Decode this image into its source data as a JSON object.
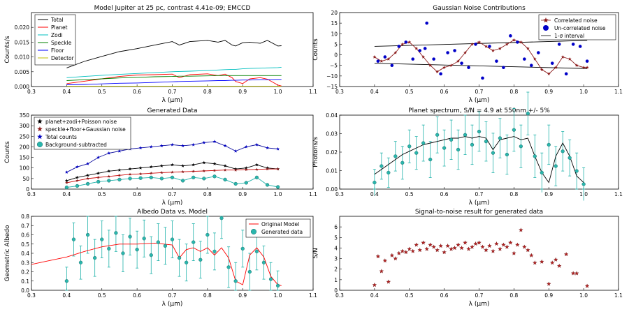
{
  "figure": {
    "title": "Six-panel simulated exoplanet spectrum figure"
  },
  "colors": {
    "total": "#000000",
    "planet": "#ff0000",
    "zodi": "#00bfbf",
    "speckle": "#008000",
    "floor": "#0000ff",
    "detector": "#bfbf00",
    "teal": "#20b2aa",
    "tealfill": "#2ab6ad",
    "darkred": "#8b1a1a",
    "navy": "#1010a0"
  },
  "chart_data": [
    {
      "id": "p1",
      "type": "line",
      "title": "Model Jupiter at 25 pc, contrast 4.41e-09; EMCCD",
      "xlabel": "λ (μm)",
      "ylabel": "Counts/s",
      "xlim": [
        0.3,
        1.1
      ],
      "ylim": [
        0,
        0.025
      ],
      "xticks": [
        "0.3",
        "0.4",
        "0.5",
        "0.6",
        "0.7",
        "0.8",
        "0.9",
        "1.0",
        "1.1"
      ],
      "yticks": [
        "0.000",
        "0.005",
        "0.010",
        "0.015",
        "0.020"
      ],
      "legend": [
        "Total",
        "Planet",
        "Zodi",
        "Speckle",
        "Floor",
        "Detector"
      ],
      "x": [
        0.4,
        0.45,
        0.5,
        0.55,
        0.6,
        0.65,
        0.7,
        0.72,
        0.75,
        0.8,
        0.83,
        0.85,
        0.87,
        0.88,
        0.9,
        0.92,
        0.95,
        0.97,
        1.0,
        1.01
      ],
      "series": [
        {
          "name": "Total",
          "y": [
            0.0063,
            0.0085,
            0.0102,
            0.0118,
            0.0128,
            0.014,
            0.0152,
            0.014,
            0.0152,
            0.0156,
            0.015,
            0.0156,
            0.014,
            0.0137,
            0.0148,
            0.015,
            0.0146,
            0.0156,
            0.0137,
            0.0138
          ]
        },
        {
          "name": "Planet",
          "y": [
            0.001,
            0.0018,
            0.0026,
            0.0034,
            0.0039,
            0.004,
            0.0042,
            0.003,
            0.004,
            0.0043,
            0.0037,
            0.0042,
            0.003,
            0.0017,
            0.001,
            0.0026,
            0.003,
            0.0025,
            0.0005,
            0.0002
          ]
        },
        {
          "name": "Zodi",
          "y": [
            0.003,
            0.0034,
            0.0038,
            0.0041,
            0.0044,
            0.0047,
            0.005,
            0.0051,
            0.0052,
            0.0054,
            0.0056,
            0.0057,
            0.0058,
            0.0058,
            0.006,
            0.0061,
            0.0062,
            0.0063,
            0.0064,
            0.0065
          ]
        },
        {
          "name": "Speckle",
          "y": [
            0.002,
            0.0023,
            0.0026,
            0.0029,
            0.0031,
            0.0033,
            0.0034,
            0.0035,
            0.0035,
            0.0036,
            0.0037,
            0.0037,
            0.0037,
            0.0037,
            0.0037,
            0.0037,
            0.0037,
            0.0037,
            0.0037,
            0.0037
          ]
        },
        {
          "name": "Floor",
          "y": [
            0.0006,
            0.0007,
            0.0009,
            0.0011,
            0.0012,
            0.0014,
            0.0016,
            0.0017,
            0.0018,
            0.0019,
            0.002,
            0.002,
            0.0021,
            0.0021,
            0.0022,
            0.0022,
            0.0023,
            0.0023,
            0.0024,
            0.0024
          ]
        },
        {
          "name": "Detector",
          "y": [
            0.0001,
            0.0001,
            0.0001,
            0.0001,
            0.0001,
            0.0001,
            0.0001,
            0.0001,
            0.0001,
            0.0001,
            0.0001,
            0.0001,
            0.0001,
            0.0001,
            0.0001,
            0.0001,
            0.0001,
            0.0001,
            0.0001,
            0.0001
          ]
        }
      ]
    },
    {
      "id": "p2",
      "type": "scatter",
      "title": "Gaussian Noise Contributions",
      "xlabel": "λ (μm)",
      "ylabel": "Counts",
      "xlim": [
        0.3,
        1.1
      ],
      "ylim": [
        -15,
        20
      ],
      "xticks": [
        "0.3",
        "0.4",
        "0.5",
        "0.6",
        "0.7",
        "0.8",
        "0.9",
        "1.0",
        "1.1"
      ],
      "yticks": [
        "−15",
        "−10",
        "−5",
        "0",
        "5",
        "10",
        "15",
        "20"
      ],
      "legend": [
        "Correlated noise",
        "Un-correlated noise",
        "1-σ interval"
      ],
      "sigma_x": [
        0.4,
        1.01
      ],
      "sigma_upper": [
        4.0,
        6.8
      ],
      "sigma_lower": [
        -4.0,
        -6.5
      ],
      "correlated": {
        "x": [
          0.4,
          0.42,
          0.44,
          0.46,
          0.48,
          0.5,
          0.52,
          0.54,
          0.56,
          0.58,
          0.6,
          0.62,
          0.64,
          0.66,
          0.68,
          0.7,
          0.72,
          0.74,
          0.76,
          0.78,
          0.8,
          0.82,
          0.84,
          0.86,
          0.88,
          0.9,
          0.92,
          0.94,
          0.96,
          0.98,
          1.0,
          1.01
        ],
        "y": [
          -1,
          -3,
          -2,
          1,
          5,
          6,
          3,
          -1,
          -5,
          -8,
          -6,
          -5,
          -3,
          1,
          5,
          6,
          4,
          2,
          3,
          5,
          7,
          6,
          3,
          -2,
          -7,
          -9,
          -6,
          -1,
          -2,
          -5,
          -6,
          -6
        ]
      },
      "uncorrelated": {
        "x": [
          0.41,
          0.43,
          0.45,
          0.47,
          0.49,
          0.51,
          0.53,
          0.545,
          0.55,
          0.57,
          0.59,
          0.61,
          0.63,
          0.65,
          0.67,
          0.69,
          0.71,
          0.73,
          0.75,
          0.77,
          0.79,
          0.81,
          0.83,
          0.85,
          0.87,
          0.89,
          0.91,
          0.93,
          0.95,
          0.97,
          0.99,
          1.01
        ],
        "y": [
          -3,
          -1,
          -5,
          4,
          6,
          -2,
          2,
          3,
          15,
          -2,
          -9,
          1,
          2,
          -4,
          -6,
          5,
          -11,
          4,
          -3,
          -6,
          9,
          6,
          -2,
          -5,
          1,
          13,
          -4,
          5,
          -9,
          5,
          4,
          -3
        ]
      }
    },
    {
      "id": "p3",
      "type": "scatter",
      "title": "Generated Data",
      "xlabel": "λ (μm)",
      "ylabel": "Counts",
      "xlim": [
        0.3,
        1.1
      ],
      "ylim": [
        0,
        350
      ],
      "xticks": [
        "0.3",
        "0.4",
        "0.5",
        "0.6",
        "0.7",
        "0.8",
        "0.9",
        "1.0",
        "1.1"
      ],
      "yticks": [
        "0",
        "50",
        "100",
        "150",
        "200",
        "250",
        "300",
        "350"
      ],
      "legend": [
        "planet+zodi+Poisson noise",
        "speckle+floor+Gaussian noise",
        "Total counts",
        "Background-subtracted"
      ],
      "x": [
        0.4,
        0.43,
        0.46,
        0.49,
        0.52,
        0.55,
        0.58,
        0.61,
        0.64,
        0.67,
        0.7,
        0.73,
        0.76,
        0.79,
        0.82,
        0.85,
        0.88,
        0.91,
        0.94,
        0.97,
        1.0
      ],
      "total": [
        80,
        105,
        120,
        150,
        170,
        180,
        190,
        195,
        200,
        205,
        210,
        205,
        210,
        220,
        225,
        205,
        180,
        200,
        210,
        195,
        190
      ],
      "pz": [
        40,
        55,
        65,
        75,
        85,
        90,
        95,
        100,
        105,
        110,
        115,
        110,
        115,
        125,
        120,
        110,
        95,
        100,
        115,
        100,
        95
      ],
      "sf": [
        30,
        40,
        50,
        55,
        60,
        65,
        70,
        72,
        75,
        78,
        80,
        82,
        84,
        86,
        88,
        90,
        90,
        92,
        93,
        95,
        95
      ],
      "bgsub": [
        8,
        15,
        25,
        35,
        40,
        45,
        50,
        52,
        55,
        50,
        55,
        40,
        55,
        50,
        60,
        45,
        25,
        30,
        55,
        20,
        10
      ]
    },
    {
      "id": "p4",
      "type": "scatter",
      "title": "Planet spectrum, S/N = 4.9 at 550nm +/- 5%",
      "xlabel": "λ (μm)",
      "ylabel": "Photons/s",
      "xlim": [
        0.3,
        1.1
      ],
      "ylim": [
        0,
        0.045
      ],
      "xticks": [
        "0.3",
        "0.4",
        "0.5",
        "0.6",
        "0.7",
        "0.8",
        "0.9",
        "1.0",
        "1.1"
      ],
      "yticks": [
        "0.00",
        "0.01",
        "0.02",
        "0.03",
        "0.04"
      ],
      "x": [
        0.4,
        0.42,
        0.44,
        0.46,
        0.48,
        0.5,
        0.52,
        0.54,
        0.56,
        0.58,
        0.6,
        0.62,
        0.64,
        0.66,
        0.68,
        0.7,
        0.72,
        0.74,
        0.76,
        0.78,
        0.8,
        0.82,
        0.84,
        0.86,
        0.88,
        0.9,
        0.92,
        0.94,
        0.96,
        0.98,
        1.0
      ],
      "model": [
        0.009,
        0.012,
        0.015,
        0.018,
        0.021,
        0.023,
        0.025,
        0.027,
        0.028,
        0.029,
        0.03,
        0.031,
        0.031,
        0.032,
        0.031,
        0.032,
        0.031,
        0.024,
        0.03,
        0.031,
        0.032,
        0.03,
        0.031,
        0.02,
        0.01,
        0.004,
        0.02,
        0.028,
        0.02,
        0.008,
        0.004
      ],
      "data": [
        0.004,
        0.014,
        0.01,
        0.02,
        0.016,
        0.026,
        0.022,
        0.028,
        0.018,
        0.033,
        0.025,
        0.03,
        0.024,
        0.033,
        0.027,
        0.035,
        0.029,
        0.022,
        0.031,
        0.021,
        0.036,
        0.026,
        0.046,
        0.02,
        0.01,
        0.027,
        0.014,
        0.023,
        0.019,
        0.011,
        0.003
      ],
      "err": [
        0.008,
        0.008,
        0.009,
        0.009,
        0.01,
        0.01,
        0.01,
        0.011,
        0.011,
        0.011,
        0.011,
        0.012,
        0.012,
        0.012,
        0.012,
        0.012,
        0.012,
        0.012,
        0.012,
        0.012,
        0.013,
        0.013,
        0.013,
        0.013,
        0.012,
        0.012,
        0.012,
        0.012,
        0.011,
        0.011,
        0.01
      ]
    },
    {
      "id": "p5",
      "type": "scatter",
      "title": "Albedo Data vs. Model",
      "xlabel": "λ (μm)",
      "ylabel": "Geometric Albedo",
      "xlim": [
        0.3,
        1.1
      ],
      "ylim": [
        0,
        0.8
      ],
      "xticks": [
        "0.3",
        "0.4",
        "0.5",
        "0.6",
        "0.7",
        "0.8",
        "0.9",
        "1.0",
        "1.1"
      ],
      "yticks": [
        "0.0",
        "0.1",
        "0.2",
        "0.3",
        "0.4",
        "0.5",
        "0.6",
        "0.7",
        "0.8"
      ],
      "legend": [
        "Original Model",
        "Generated data"
      ],
      "model_x": [
        0.3,
        0.35,
        0.4,
        0.45,
        0.5,
        0.55,
        0.6,
        0.65,
        0.7,
        0.72,
        0.74,
        0.76,
        0.78,
        0.8,
        0.82,
        0.84,
        0.86,
        0.88,
        0.9,
        0.92,
        0.94,
        0.96,
        0.98,
        1.0,
        1.01
      ],
      "model_y": [
        0.28,
        0.32,
        0.36,
        0.42,
        0.47,
        0.5,
        0.5,
        0.51,
        0.49,
        0.35,
        0.44,
        0.46,
        0.42,
        0.46,
        0.38,
        0.46,
        0.35,
        0.1,
        0.06,
        0.38,
        0.46,
        0.36,
        0.15,
        0.06,
        0.05
      ],
      "x": [
        0.4,
        0.42,
        0.44,
        0.46,
        0.48,
        0.5,
        0.52,
        0.54,
        0.56,
        0.58,
        0.6,
        0.62,
        0.64,
        0.66,
        0.68,
        0.7,
        0.72,
        0.74,
        0.76,
        0.78,
        0.8,
        0.82,
        0.84,
        0.86,
        0.88,
        0.9,
        0.92,
        0.94,
        0.96,
        0.98,
        1.0
      ],
      "data": [
        0.1,
        0.55,
        0.3,
        0.6,
        0.35,
        0.55,
        0.45,
        0.62,
        0.4,
        0.58,
        0.44,
        0.56,
        0.38,
        0.52,
        0.48,
        0.55,
        0.35,
        0.3,
        0.52,
        0.33,
        0.6,
        0.42,
        0.78,
        0.25,
        0.1,
        0.45,
        0.2,
        0.42,
        0.3,
        0.12,
        0.05
      ],
      "err": [
        0.15,
        0.18,
        0.18,
        0.2,
        0.2,
        0.2,
        0.2,
        0.2,
        0.2,
        0.2,
        0.2,
        0.2,
        0.2,
        0.2,
        0.2,
        0.2,
        0.2,
        0.2,
        0.2,
        0.2,
        0.2,
        0.2,
        0.22,
        0.22,
        0.2,
        0.2,
        0.2,
        0.2,
        0.18,
        0.18,
        0.16
      ]
    },
    {
      "id": "p6",
      "type": "scatter",
      "title": "Signal-to-noise result for generated data",
      "xlabel": "λ (μm)",
      "ylabel": "S/N",
      "xlim": [
        0.3,
        1.1
      ],
      "ylim": [
        0,
        7
      ],
      "xticks": [
        "0.3",
        "0.4",
        "0.5",
        "0.6",
        "0.7",
        "0.8",
        "0.9",
        "1.0",
        "1.1"
      ],
      "yticks": [
        "0",
        "1",
        "2",
        "3",
        "4",
        "5",
        "6"
      ],
      "x": [
        0.4,
        0.41,
        0.42,
        0.43,
        0.44,
        0.45,
        0.46,
        0.47,
        0.48,
        0.49,
        0.5,
        0.51,
        0.52,
        0.53,
        0.54,
        0.55,
        0.56,
        0.57,
        0.58,
        0.59,
        0.6,
        0.61,
        0.62,
        0.63,
        0.64,
        0.65,
        0.66,
        0.67,
        0.68,
        0.69,
        0.7,
        0.71,
        0.72,
        0.73,
        0.74,
        0.75,
        0.76,
        0.77,
        0.78,
        0.79,
        0.8,
        0.81,
        0.82,
        0.83,
        0.84,
        0.85,
        0.86,
        0.88,
        0.9,
        0.91,
        0.92,
        0.93,
        0.95,
        0.97,
        0.98,
        1.01
      ],
      "y": [
        0.5,
        3.2,
        1.8,
        2.8,
        0.8,
        3.3,
        3.0,
        3.5,
        3.7,
        3.6,
        3.9,
        3.7,
        4.3,
        3.8,
        4.5,
        3.9,
        4.3,
        4.1,
        3.8,
        4.2,
        3.6,
        4.2,
        3.9,
        4.0,
        4.3,
        4.0,
        4.5,
        3.9,
        4.1,
        4.4,
        4.5,
        4.1,
        3.8,
        4.2,
        3.7,
        4.4,
        3.9,
        4.3,
        4.1,
        4.5,
        3.5,
        4.3,
        5.7,
        4.1,
        3.8,
        3.3,
        2.6,
        2.7,
        0.6,
        2.6,
        2.9,
        2.3,
        3.4,
        1.6,
        1.6,
        0.4
      ]
    }
  ]
}
